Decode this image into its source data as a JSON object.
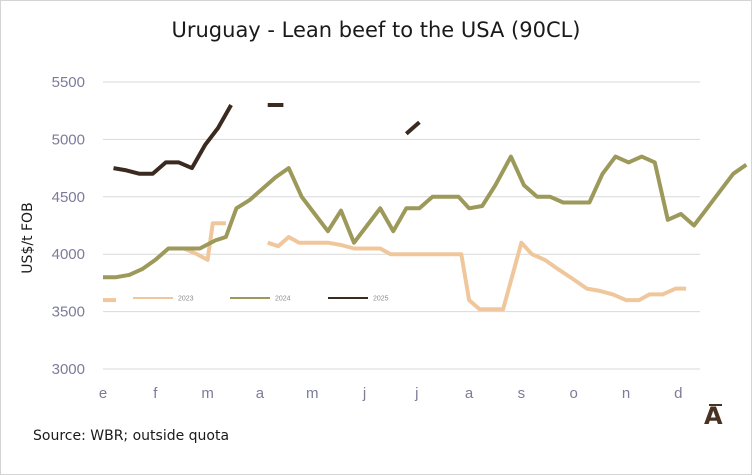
{
  "title": "Uruguay - Lean beef to the USA (90CL)",
  "source_note": "Source: WBR; outside quota",
  "logo_text": "A",
  "chart_data": {
    "type": "line",
    "title": "Uruguay - Lean beef to the USA (90CL)",
    "ylabel": "US$/t FOB",
    "xlabel": "",
    "ylim": [
      3000,
      5500
    ],
    "yticks": [
      "3000",
      "3500",
      "4000",
      "4500",
      "5000",
      "5500"
    ],
    "xlim": [
      0,
      12
    ],
    "xticks": [
      "e",
      "f",
      "m",
      "a",
      "m",
      "j",
      "j",
      "a",
      "s",
      "o",
      "n",
      "d"
    ],
    "grid": true,
    "legend_position": "bottom-left",
    "series": [
      {
        "name": "2023",
        "color": "#f0c79c",
        "segments": [
          [
            [
              0.0,
              3600
            ],
            [
              0.25,
              3600
            ]
          ],
          [
            [
              1.55,
              4050
            ],
            [
              1.8,
              4000
            ],
            [
              2.0,
              3950
            ],
            [
              2.1,
              4270
            ],
            [
              2.35,
              4270
            ]
          ],
          [
            [
              3.15,
              4100
            ],
            [
              3.35,
              4070
            ],
            [
              3.55,
              4150
            ],
            [
              3.75,
              4100
            ],
            [
              4.0,
              4100
            ],
            [
              4.3,
              4100
            ],
            [
              4.55,
              4080
            ],
            [
              4.8,
              4050
            ],
            [
              5.05,
              4050
            ],
            [
              5.3,
              4050
            ],
            [
              5.5,
              4000
            ],
            [
              5.8,
              4000
            ],
            [
              6.05,
              4000
            ],
            [
              6.3,
              4000
            ],
            [
              6.55,
              4000
            ],
            [
              6.85,
              4000
            ],
            [
              7.0,
              3600
            ],
            [
              7.2,
              3520
            ],
            [
              7.5,
              3520
            ],
            [
              7.65,
              3520
            ],
            [
              8.0,
              4100
            ],
            [
              8.2,
              4000
            ],
            [
              8.45,
              3950
            ],
            [
              8.7,
              3870
            ],
            [
              9.0,
              3780
            ],
            [
              9.25,
              3700
            ],
            [
              9.5,
              3680
            ],
            [
              9.75,
              3650
            ],
            [
              10.0,
              3600
            ],
            [
              10.25,
              3600
            ],
            [
              10.45,
              3650
            ],
            [
              10.7,
              3650
            ],
            [
              10.95,
              3700
            ],
            [
              11.15,
              3700
            ]
          ]
        ]
      },
      {
        "name": "2024",
        "color": "#9c995a",
        "segments": [
          [
            [
              0.0,
              3800
            ],
            [
              0.25,
              3800
            ],
            [
              0.5,
              3820
            ],
            [
              0.75,
              3870
            ],
            [
              1.0,
              3950
            ],
            [
              1.25,
              4050
            ],
            [
              1.5,
              4050
            ],
            [
              1.85,
              4050
            ],
            [
              2.15,
              4120
            ],
            [
              2.35,
              4150
            ],
            [
              2.55,
              4400
            ],
            [
              2.8,
              4470
            ],
            [
              3.05,
              4570
            ],
            [
              3.3,
              4670
            ],
            [
              3.55,
              4750
            ],
            [
              3.8,
              4500
            ],
            [
              4.05,
              4350
            ],
            [
              4.3,
              4200
            ],
            [
              4.55,
              4380
            ],
            [
              4.8,
              4100
            ],
            [
              5.05,
              4250
            ],
            [
              5.3,
              4400
            ],
            [
              5.55,
              4200
            ],
            [
              5.8,
              4400
            ],
            [
              6.05,
              4400
            ],
            [
              6.3,
              4500
            ],
            [
              6.55,
              4500
            ],
            [
              6.8,
              4500
            ],
            [
              7.0,
              4400
            ],
            [
              7.25,
              4420
            ],
            [
              7.5,
              4600
            ],
            [
              7.8,
              4850
            ],
            [
              8.05,
              4600
            ],
            [
              8.3,
              4500
            ],
            [
              8.55,
              4500
            ],
            [
              8.8,
              4450
            ],
            [
              9.05,
              4450
            ],
            [
              9.3,
              4450
            ],
            [
              9.55,
              4700
            ],
            [
              9.8,
              4850
            ],
            [
              10.05,
              4800
            ],
            [
              10.3,
              4850
            ],
            [
              10.55,
              4800
            ],
            [
              10.8,
              4300
            ],
            [
              11.05,
              4350
            ],
            [
              11.3,
              4250
            ],
            [
              11.55,
              4400
            ],
            [
              11.8,
              4550
            ],
            [
              12.05,
              4700
            ],
            [
              12.3,
              4780
            ]
          ]
        ]
      },
      {
        "name": "2025",
        "color": "#3b2a1f",
        "segments": [
          [
            [
              0.2,
              4750
            ],
            [
              0.45,
              4730
            ],
            [
              0.7,
              4700
            ],
            [
              0.95,
              4700
            ],
            [
              1.2,
              4800
            ],
            [
              1.45,
              4800
            ],
            [
              1.7,
              4750
            ],
            [
              1.95,
              4950
            ],
            [
              2.2,
              5100
            ],
            [
              2.45,
              5300
            ]
          ],
          [
            [
              3.15,
              5300
            ],
            [
              3.45,
              5300
            ]
          ],
          [
            [
              5.8,
              5050
            ],
            [
              6.05,
              5150
            ]
          ]
        ]
      }
    ]
  }
}
